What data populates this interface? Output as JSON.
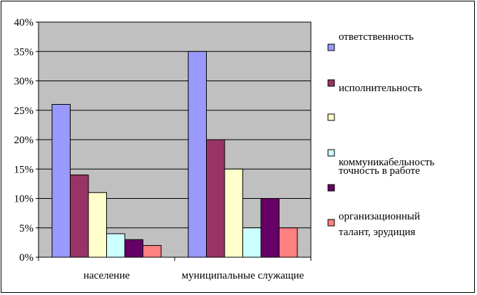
{
  "chart_data": {
    "type": "bar",
    "title": "",
    "xlabel": "",
    "ylabel": "",
    "categories": [
      "население",
      "муниципальные  служащие"
    ],
    "series": [
      {
        "name": "ответственность",
        "color": "#9999ff",
        "values": [
          26,
          35
        ]
      },
      {
        "name": "исполнительность",
        "color": "#993366",
        "values": [
          14,
          20
        ]
      },
      {
        "name": "коммуникабельность",
        "color": "#ffffcc",
        "values": [
          11,
          15
        ]
      },
      {
        "name": "точность в работе",
        "color": "#ccffff",
        "values": [
          4,
          5
        ]
      },
      {
        "name": "",
        "color": "#660066",
        "values": [
          3,
          10
        ]
      },
      {
        "name": "организационный талант,  эрудиция",
        "color": "#ff8080",
        "values": [
          2,
          5
        ]
      }
    ],
    "ylim": [
      0,
      40
    ],
    "yticks": [
      "0%",
      "5%",
      "10%",
      "15%",
      "20%",
      "25%",
      "30%",
      "35%",
      "40%"
    ],
    "plot_background": "#c0c0c0",
    "grid": true,
    "legend_position": "right"
  }
}
